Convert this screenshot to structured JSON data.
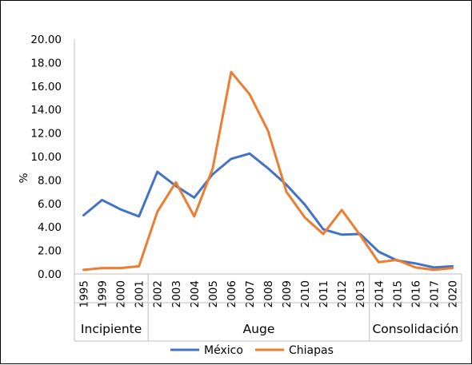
{
  "chart_data": {
    "type": "line",
    "ylabel": "%",
    "ylim": [
      0,
      20
    ],
    "yticks": [
      "0.00",
      "2.00",
      "4.00",
      "6.00",
      "8.00",
      "10.00",
      "12.00",
      "14.00",
      "16.00",
      "18.00",
      "20.00"
    ],
    "categories": [
      "1995",
      "1999",
      "2000",
      "2001",
      "2002",
      "2003",
      "2004",
      "2005",
      "2006",
      "2007",
      "2008",
      "2009",
      "2010",
      "2011",
      "2012",
      "2013",
      "2014",
      "2015",
      "2016",
      "2017",
      "2020"
    ],
    "groups": [
      {
        "label": "Incipiente",
        "categories": [
          "1995",
          "1999",
          "2000",
          "2001"
        ]
      },
      {
        "label": "Auge",
        "categories": [
          "2002",
          "2003",
          "2004",
          "2005",
          "2006",
          "2007",
          "2008",
          "2009",
          "2010",
          "2011",
          "2012",
          "2013"
        ]
      },
      {
        "label": "Consolidación",
        "categories": [
          "2014",
          "2015",
          "2016",
          "2017",
          "2020"
        ]
      }
    ],
    "series": [
      {
        "name": "México",
        "color": "#4472C4",
        "values": [
          5.0,
          6.3,
          5.5,
          4.9,
          8.7,
          7.5,
          6.5,
          8.5,
          9.8,
          10.25,
          9.0,
          7.6,
          5.9,
          3.8,
          3.35,
          3.4,
          1.9,
          1.15,
          0.9,
          0.55,
          0.65
        ]
      },
      {
        "name": "Chiapas",
        "color": "#ED7D31",
        "values": [
          0.35,
          0.5,
          0.5,
          0.65,
          5.3,
          7.8,
          4.9,
          9.0,
          17.2,
          15.3,
          12.2,
          7.0,
          4.8,
          3.4,
          5.45,
          3.3,
          1.0,
          1.2,
          0.55,
          0.35,
          0.5
        ]
      }
    ],
    "grid": false,
    "legend_position": "bottom"
  }
}
